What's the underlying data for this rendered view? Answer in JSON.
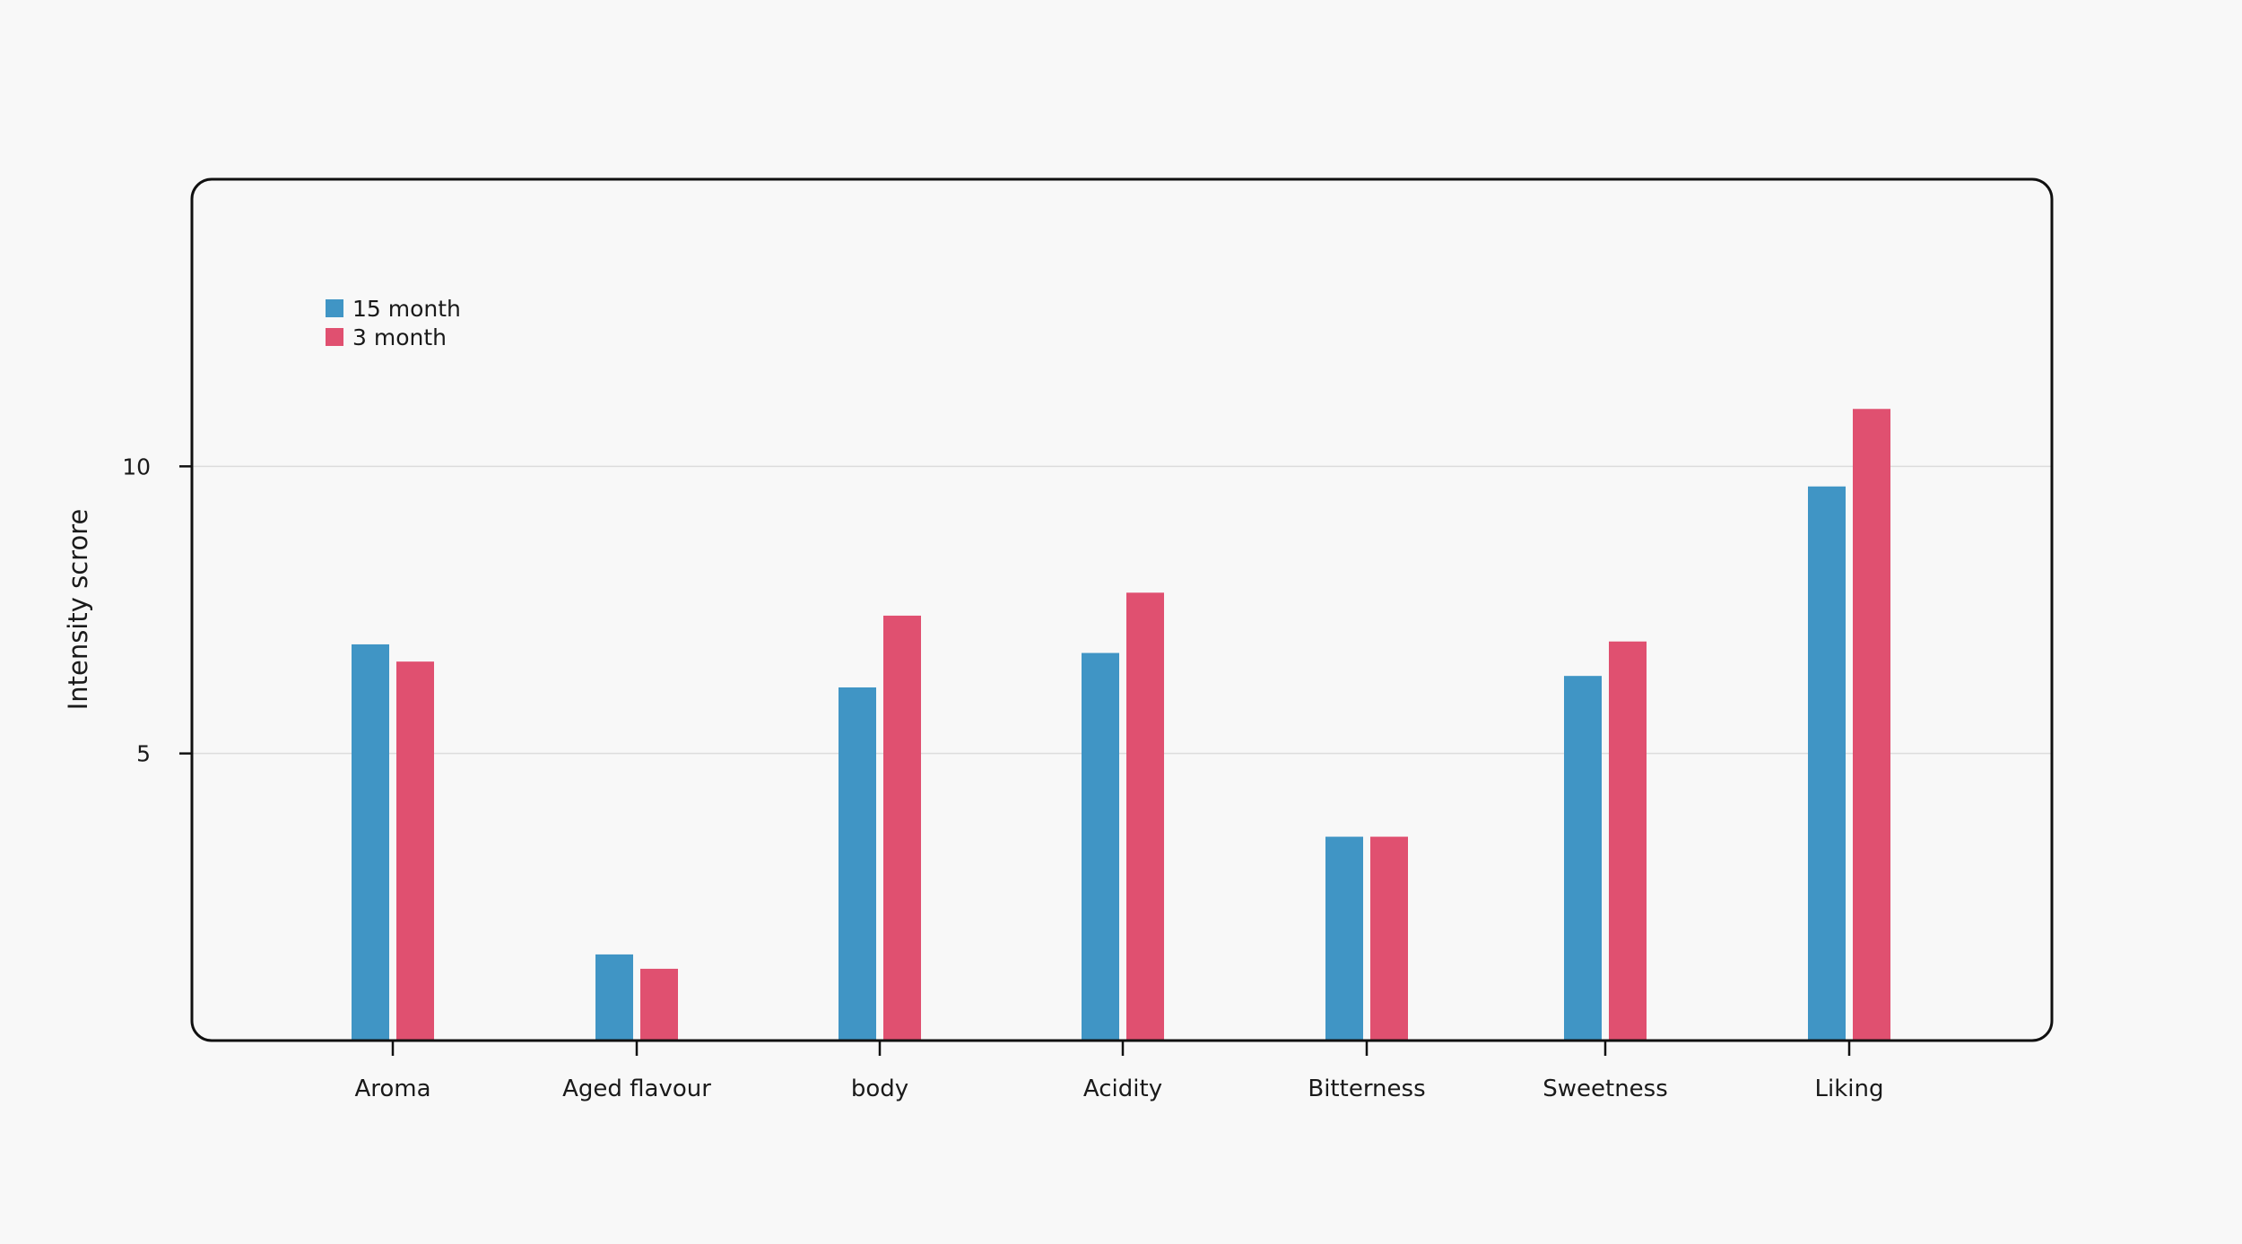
{
  "chart_data": {
    "type": "bar",
    "title": "",
    "xlabel": "",
    "ylabel": "Intensity scrore",
    "ylim": [
      0,
      15
    ],
    "yticks": [
      5,
      10
    ],
    "grid": true,
    "legend_position": "top-left",
    "categories": [
      "Aroma",
      "Aged flavour",
      "body",
      "Acidity",
      "Bitterness",
      "Sweetness",
      "Liking"
    ],
    "series": [
      {
        "name": "15 month",
        "color": "#4095c5",
        "values": [
          6.9,
          1.5,
          6.15,
          6.75,
          3.55,
          6.35,
          9.65
        ]
      },
      {
        "name": "3 month",
        "color": "#e05070",
        "values": [
          6.6,
          1.25,
          7.4,
          7.8,
          3.55,
          6.95,
          11.0
        ]
      }
    ]
  }
}
